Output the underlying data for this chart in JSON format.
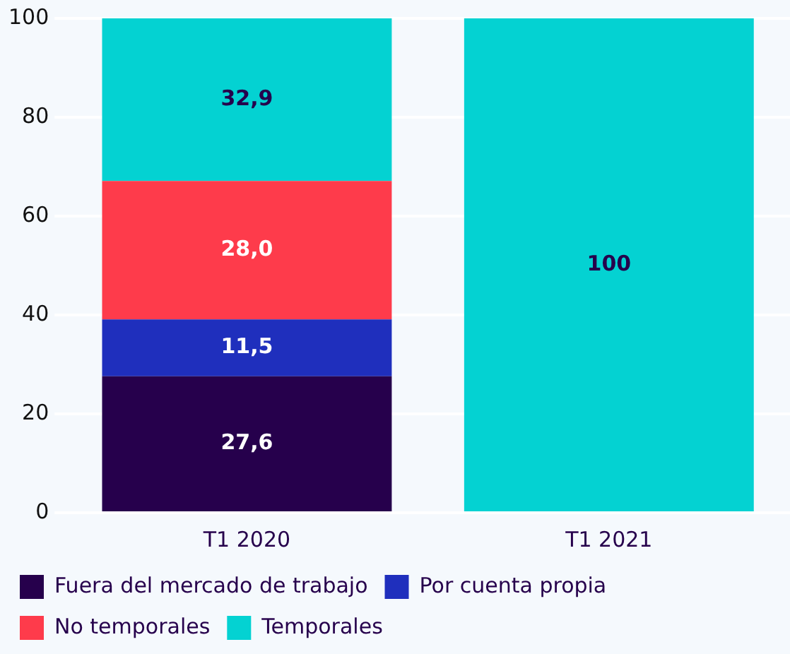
{
  "chart_data": {
    "type": "bar",
    "stacked": true,
    "categories": [
      "T1 2020",
      "T1 2021"
    ],
    "series": [
      {
        "name": "Fuera del mercado de trabajo",
        "color": "#26004c",
        "values": [
          27.6,
          0
        ],
        "value_labels": [
          "27,6",
          null
        ]
      },
      {
        "name": "Por cuenta propia",
        "color": "#1f2fbd",
        "values": [
          11.5,
          0
        ],
        "value_labels": [
          "11,5",
          null
        ]
      },
      {
        "name": "No temporales",
        "color": "#fe3b4b",
        "values": [
          28.0,
          0
        ],
        "value_labels": [
          "28,0",
          null
        ]
      },
      {
        "name": "Temporales",
        "color": "#04d2d2",
        "values": [
          32.9,
          100
        ],
        "value_labels": [
          "32,9",
          "100"
        ]
      }
    ],
    "ylim": [
      0,
      100
    ],
    "yticks": [
      0,
      20,
      40,
      60,
      80,
      100
    ],
    "grid": "y",
    "legend": "bottom"
  }
}
